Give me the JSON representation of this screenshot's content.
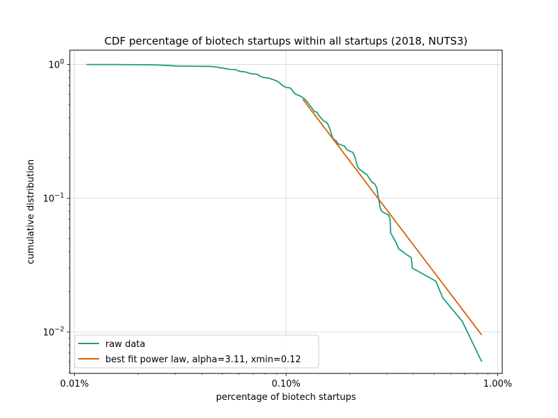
{
  "chart_data": {
    "type": "line",
    "title": "CDF percentage of biotech startups within all startups (2018, NUTS3)",
    "xlabel": "percentage of biotech startups",
    "ylabel": "cumulative distribution",
    "xscale": "log",
    "yscale": "log",
    "xlim": [
      0.0095,
      1.05
    ],
    "ylim": [
      0.0049,
      1.28
    ],
    "xticks": [
      {
        "value": 0.01,
        "label": "0.01%"
      },
      {
        "value": 0.1,
        "label": "0.10%"
      },
      {
        "value": 1.0,
        "label": "1.00%"
      }
    ],
    "yticks": [
      {
        "value": 1,
        "base": "10",
        "exp": "0"
      },
      {
        "value": 0.1,
        "base": "10",
        "exp": "−1"
      },
      {
        "value": 0.01,
        "base": "10",
        "exp": "−2"
      }
    ],
    "grid": true,
    "legend_position": "lower-left",
    "series": [
      {
        "name": "raw data",
        "color": "#1b9e77",
        "points": [
          [
            0.0114,
            1.0
          ],
          [
            0.0155,
            1.0
          ],
          [
            0.0225,
            0.995
          ],
          [
            0.025,
            0.99
          ],
          [
            0.03,
            0.975
          ],
          [
            0.036,
            0.97
          ],
          [
            0.044,
            0.968
          ],
          [
            0.047,
            0.955
          ],
          [
            0.05,
            0.94
          ],
          [
            0.054,
            0.92
          ],
          [
            0.058,
            0.915
          ],
          [
            0.06,
            0.89
          ],
          [
            0.064,
            0.88
          ],
          [
            0.068,
            0.855
          ],
          [
            0.073,
            0.845
          ],
          [
            0.075,
            0.82
          ],
          [
            0.078,
            0.8
          ],
          [
            0.083,
            0.79
          ],
          [
            0.087,
            0.77
          ],
          [
            0.091,
            0.75
          ],
          [
            0.094,
            0.72
          ],
          [
            0.097,
            0.69
          ],
          [
            0.1,
            0.675
          ],
          [
            0.104,
            0.67
          ],
          [
            0.106,
            0.655
          ],
          [
            0.108,
            0.625
          ],
          [
            0.111,
            0.6
          ],
          [
            0.114,
            0.59
          ],
          [
            0.118,
            0.575
          ],
          [
            0.121,
            0.56
          ],
          [
            0.124,
            0.54
          ],
          [
            0.127,
            0.515
          ],
          [
            0.13,
            0.49
          ],
          [
            0.133,
            0.47
          ],
          [
            0.136,
            0.445
          ],
          [
            0.14,
            0.44
          ],
          [
            0.142,
            0.42
          ],
          [
            0.146,
            0.4
          ],
          [
            0.15,
            0.38
          ],
          [
            0.155,
            0.37
          ],
          [
            0.158,
            0.355
          ],
          [
            0.161,
            0.33
          ],
          [
            0.163,
            0.31
          ],
          [
            0.165,
            0.29
          ],
          [
            0.168,
            0.275
          ],
          [
            0.172,
            0.27
          ],
          [
            0.176,
            0.255
          ],
          [
            0.183,
            0.25
          ],
          [
            0.189,
            0.245
          ],
          [
            0.194,
            0.23
          ],
          [
            0.2,
            0.225
          ],
          [
            0.207,
            0.22
          ],
          [
            0.211,
            0.205
          ],
          [
            0.214,
            0.19
          ],
          [
            0.217,
            0.175
          ],
          [
            0.221,
            0.165
          ],
          [
            0.228,
            0.16
          ],
          [
            0.234,
            0.155
          ],
          [
            0.241,
            0.15
          ],
          [
            0.248,
            0.14
          ],
          [
            0.255,
            0.132
          ],
          [
            0.262,
            0.128
          ],
          [
            0.268,
            0.12
          ],
          [
            0.272,
            0.105
          ],
          [
            0.275,
            0.095
          ],
          [
            0.278,
            0.085
          ],
          [
            0.283,
            0.08
          ],
          [
            0.29,
            0.078
          ],
          [
            0.305,
            0.075
          ],
          [
            0.31,
            0.07
          ],
          [
            0.312,
            0.055
          ],
          [
            0.33,
            0.047
          ],
          [
            0.34,
            0.042
          ],
          [
            0.37,
            0.038
          ],
          [
            0.39,
            0.036
          ],
          [
            0.395,
            0.03
          ],
          [
            0.51,
            0.024
          ],
          [
            0.55,
            0.018
          ],
          [
            0.68,
            0.012
          ],
          [
            0.84,
            0.006
          ]
        ]
      },
      {
        "name": "best fit power law, alpha=3.11, xmin=0.12",
        "color": "#d95f02",
        "points": [
          [
            0.12,
            0.55
          ],
          [
            0.84,
            0.0095
          ]
        ]
      }
    ]
  }
}
